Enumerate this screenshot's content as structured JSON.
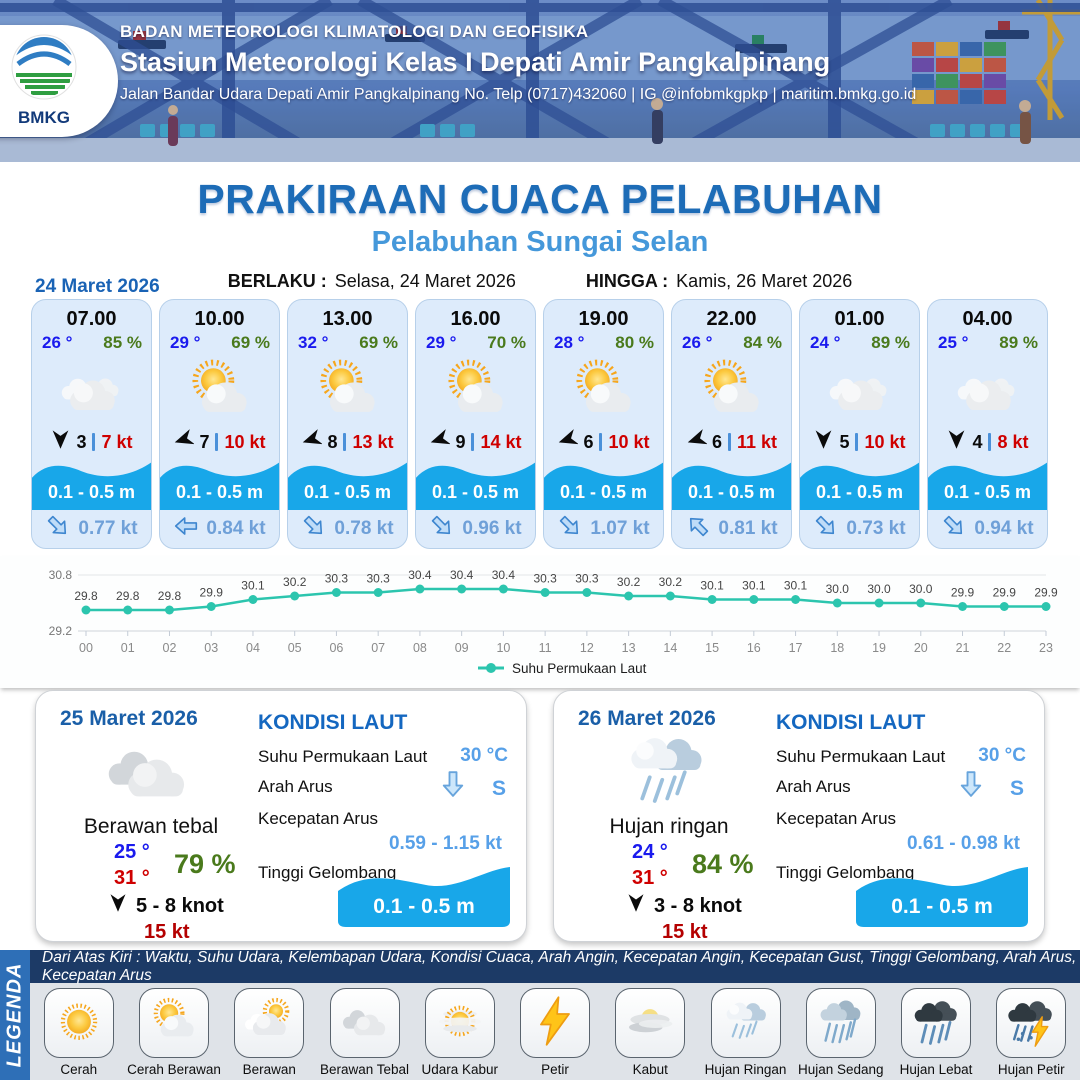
{
  "header": {
    "org": "BADAN METEOROLOGI KLIMATOLOGI DAN GEOFISIKA",
    "station": "Stasiun Meteorologi Kelas I Depati Amir Pangkalpinang",
    "address": "Jalan Bandar Udara Depati Amir Pangkalpinang No. Telp (0717)432060 | IG @infobmkgpkp | maritim.bmkg.go.id",
    "logo_text": "BMKG"
  },
  "title": {
    "main": "PRAKIRAAN CUACA PELABUHAN",
    "sub": "Pelabuhan Sungai Selan"
  },
  "validity": {
    "berlaku_label": "BERLAKU :",
    "berlaku_value": "Selasa, 24 Maret 2026",
    "hingga_label": "HINGGA :",
    "hingga_value": "Kamis, 26 Maret 2026"
  },
  "day1": {
    "date": "24 Maret 2026",
    "cards": [
      {
        "time": "07.00",
        "temp": "26 °",
        "humidity": "85 %",
        "weather_icon": "cloudy",
        "wind_dir_deg": 180,
        "wind_speed": "3",
        "gust": "7 kt",
        "wave_height": "0.1 - 0.5 m",
        "current_dir_deg": 45,
        "current_speed": "0.77 kt"
      },
      {
        "time": "10.00",
        "temp": "29 °",
        "humidity": "69 %",
        "weather_icon": "partly-cloudy",
        "wind_dir_deg": 252,
        "wind_speed": "7",
        "gust": "10 kt",
        "wave_height": "0.1 - 0.5 m",
        "current_dir_deg": 180,
        "current_speed": "0.84 kt"
      },
      {
        "time": "13.00",
        "temp": "32 °",
        "humidity": "69 %",
        "weather_icon": "partly-cloudy",
        "wind_dir_deg": 252,
        "wind_speed": "8",
        "gust": "13 kt",
        "wave_height": "0.1 - 0.5 m",
        "current_dir_deg": 45,
        "current_speed": "0.78 kt"
      },
      {
        "time": "16.00",
        "temp": "29 °",
        "humidity": "70 %",
        "weather_icon": "partly-cloudy",
        "wind_dir_deg": 252,
        "wind_speed": "9",
        "gust": "14 kt",
        "wave_height": "0.1 - 0.5 m",
        "current_dir_deg": 45,
        "current_speed": "0.96 kt"
      },
      {
        "time": "19.00",
        "temp": "28 °",
        "humidity": "80 %",
        "weather_icon": "partly-cloudy",
        "wind_dir_deg": 252,
        "wind_speed": "6",
        "gust": "10 kt",
        "wave_height": "0.1 - 0.5 m",
        "current_dir_deg": 45,
        "current_speed": "1.07 kt"
      },
      {
        "time": "22.00",
        "temp": "26 °",
        "humidity": "84 %",
        "weather_icon": "partly-cloudy",
        "wind_dir_deg": 252,
        "wind_speed": "6",
        "gust": "11 kt",
        "wave_height": "0.1 - 0.5 m",
        "current_dir_deg": 225,
        "current_speed": "0.81 kt"
      },
      {
        "time": "01.00",
        "temp": "24 °",
        "humidity": "89 %",
        "weather_icon": "cloudy",
        "wind_dir_deg": 180,
        "wind_speed": "5",
        "gust": "10 kt",
        "wave_height": "0.1 - 0.5 m",
        "current_dir_deg": 45,
        "current_speed": "0.73 kt"
      },
      {
        "time": "04.00",
        "temp": "25 °",
        "humidity": "89 %",
        "weather_icon": "cloudy",
        "wind_dir_deg": 180,
        "wind_speed": "4",
        "gust": "8 kt",
        "wave_height": "0.1 - 0.5 m",
        "current_dir_deg": 45,
        "current_speed": "0.94 kt"
      }
    ]
  },
  "chart_data": {
    "type": "line",
    "x": [
      "00",
      "01",
      "02",
      "03",
      "04",
      "05",
      "06",
      "07",
      "08",
      "09",
      "10",
      "11",
      "12",
      "13",
      "14",
      "15",
      "16",
      "17",
      "18",
      "19",
      "20",
      "21",
      "22",
      "23"
    ],
    "series": [
      {
        "name": "Suhu Permukaan Laut",
        "values": [
          29.8,
          29.8,
          29.8,
          29.9,
          30.1,
          30.2,
          30.3,
          30.3,
          30.4,
          30.4,
          30.4,
          30.3,
          30.3,
          30.2,
          30.2,
          30.1,
          30.1,
          30.1,
          30.0,
          30.0,
          30.0,
          29.9,
          29.9,
          29.9
        ]
      }
    ],
    "ylim": [
      29.2,
      30.8
    ],
    "ytick_labels": [
      "29.2",
      "30.8"
    ],
    "line_color": "#2cc5ae",
    "grid": true,
    "legend_position": "bottom-center"
  },
  "daily": [
    {
      "date": "25 Maret 2026",
      "weather_icon": "thick-cloud",
      "condition": "Berawan tebal",
      "temp_min": "25 °",
      "temp_max": "31 °",
      "humidity": "79 %",
      "wind_dir_deg": 180,
      "wind_range": "5  - 8 knot",
      "gust": "15 kt",
      "sea": {
        "title": "KONDISI LAUT",
        "sst_label": "Suhu Permukaan Laut",
        "sst_value": "30 °C",
        "current_dir_label": "Arah Arus",
        "current_dir_deg": 90,
        "current_dir_value": "S",
        "current_speed_label": "Kecepatan Arus",
        "current_speed_value": "0.59  - 1.15 kt",
        "wave_label": "Tinggi Gelombang",
        "wave_value": "0.1 - 0.5 m"
      }
    },
    {
      "date": "26 Maret 2026",
      "weather_icon": "light-rain",
      "condition": "Hujan ringan",
      "temp_min": "24 °",
      "temp_max": "31 °",
      "humidity": "84 %",
      "wind_dir_deg": 180,
      "wind_range": "3  - 8 knot",
      "gust": "15 kt",
      "sea": {
        "title": "KONDISI LAUT",
        "sst_label": "Suhu Permukaan Laut",
        "sst_value": "30 °C",
        "current_dir_label": "Arah Arus",
        "current_dir_deg": 90,
        "current_dir_value": "S",
        "current_speed_label": "Kecepatan Arus",
        "current_speed_value": "0.61  - 0.98 kt",
        "wave_label": "Tinggi Gelombang",
        "wave_value": "0.1 - 0.5 m"
      }
    }
  ],
  "legend": {
    "title": "LEGENDA",
    "caption": "Dari Atas Kiri : Waktu, Suhu Udara, Kelembapan Udara, Kondisi Cuaca, Arah Angin, Kecepatan Angin, Kecepatan Gust, Tinggi Gelombang, Arah Arus, Kecepatan Arus",
    "items": [
      {
        "label": "Cerah",
        "icon": "sun"
      },
      {
        "label": "Cerah Berawan",
        "icon": "partly-cloudy"
      },
      {
        "label": "Berawan",
        "icon": "mostly-cloudy"
      },
      {
        "label": "Berawan Tebal",
        "icon": "thick-cloud"
      },
      {
        "label": "Udara Kabur",
        "icon": "haze"
      },
      {
        "label": "Petir",
        "icon": "thunder"
      },
      {
        "label": "Kabut",
        "icon": "fog"
      },
      {
        "label": "Hujan Ringan",
        "icon": "light-rain"
      },
      {
        "label": "Hujan Sedang",
        "icon": "moderate-rain"
      },
      {
        "label": "Hujan Lebat",
        "icon": "heavy-rain"
      },
      {
        "label": "Hujan Petir",
        "icon": "thunderstorm"
      }
    ]
  },
  "colors": {
    "title_blue": "#1d6cb7",
    "subtitle_blue": "#4598da",
    "temp_blue": "#1a1aee",
    "humidity_green": "#4a7a1c",
    "gust_red": "#cf0000",
    "wave_cyan": "#18a7e9",
    "current_text_blue": "#6fa0d8",
    "sst_line_teal": "#2cc5ae",
    "sea_value_blue": "#57a0e8",
    "legend_bar_navy": "#1c3a66",
    "legend_strip_blue": "#2e6fb7"
  }
}
